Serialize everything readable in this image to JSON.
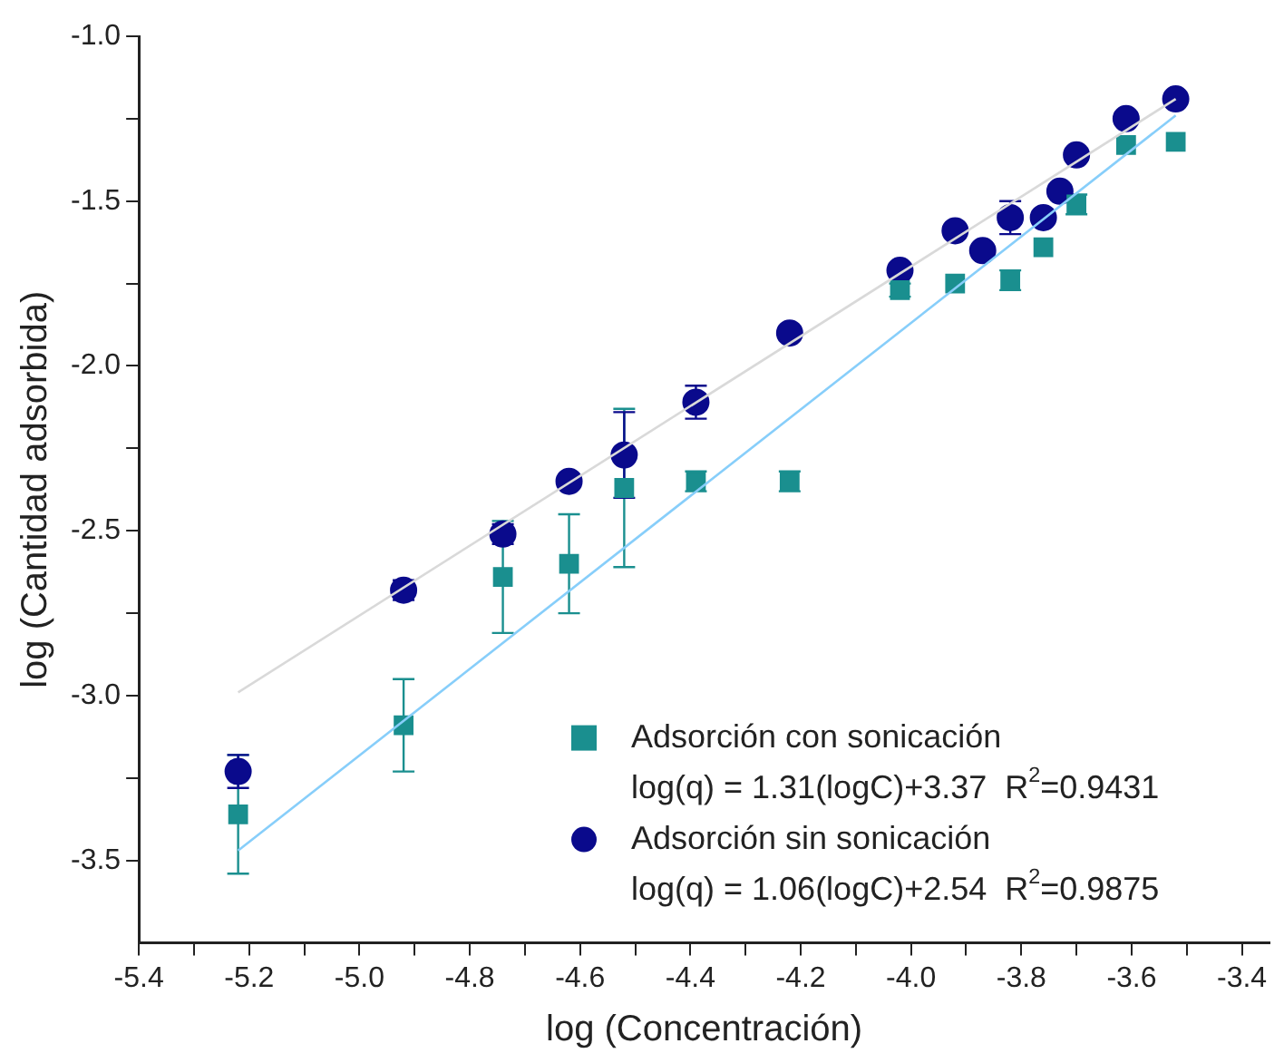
{
  "chart_data": {
    "type": "scatter",
    "xlabel": "log (Concentración)",
    "ylabel": "log (Cantidad adsorbida)",
    "xlim": [
      -5.4,
      -3.35
    ],
    "ylim": [
      -3.75,
      -1.0
    ],
    "xticks": [
      -5.4,
      {
        "value": -5.3,
        "label": null
      },
      -5.2,
      {
        "value": -5.1,
        "label": null
      },
      {
        "value": -5.0,
        "label": "-5.0"
      },
      {
        "value": -4.9,
        "label": null
      },
      -4.8,
      {
        "value": -4.7,
        "label": null
      },
      -4.6,
      {
        "value": -4.5,
        "label": null
      },
      -4.4,
      {
        "value": -4.3,
        "label": null
      },
      -4.2,
      {
        "value": -4.1,
        "label": null
      },
      {
        "value": -4.0,
        "label": "-4.0"
      },
      {
        "value": -3.9,
        "label": null
      },
      -3.8,
      {
        "value": -3.7,
        "label": null
      },
      -3.6,
      {
        "value": -3.5,
        "label": null
      },
      -3.4
    ],
    "yticks": [
      -3.5,
      {
        "value": -3.25,
        "label": null
      },
      {
        "value": -3.0,
        "label": "-3.0"
      },
      {
        "value": -2.75,
        "label": null
      },
      -2.5,
      {
        "value": -2.25,
        "label": null
      },
      {
        "value": -2.0,
        "label": "-2.0"
      },
      {
        "value": -1.75,
        "label": null
      },
      -1.5,
      {
        "value": -1.25,
        "label": null
      },
      {
        "value": -1.0,
        "label": "-1.0"
      }
    ],
    "grid": false,
    "legend": "bottom right",
    "annotations": [
      "log(q) = 1.31(logC)+3.37  R$^{2}$=0.9431",
      "log(q) = 1.06(logC)+2.54  R$^{2}$=0.9875"
    ],
    "series": [
      {
        "name": "Adsorción con sonicación",
        "marker": "square",
        "color": "#1a8f8f",
        "x": [
          -5.22,
          -4.92,
          -4.74,
          -4.62,
          -4.52,
          -4.39,
          -4.22,
          -4.02,
          -3.92,
          -3.82,
          -3.76,
          -3.7,
          -3.61,
          -3.52
        ],
        "values": [
          -3.36,
          -3.09,
          -2.64,
          -2.6,
          -2.37,
          -2.35,
          -2.35,
          -1.77,
          -1.75,
          -1.74,
          -1.64,
          -1.51,
          -1.33,
          -1.32
        ],
        "errors": [
          0.18,
          0.14,
          0.17,
          0.15,
          0.24,
          0.03,
          0.03,
          0.02,
          null,
          0.03,
          null,
          0.03,
          null,
          null
        ]
      },
      {
        "name": "Adsorción sin sonicación",
        "marker": "circle",
        "color": "#0a0a8c",
        "x": [
          -5.22,
          -4.92,
          -4.74,
          -4.62,
          -4.52,
          -4.39,
          -4.22,
          -4.02,
          -3.92,
          -3.87,
          -3.82,
          -3.76,
          -3.73,
          -3.7,
          -3.61,
          -3.52
        ],
        "values": [
          -3.23,
          -2.68,
          -2.51,
          -2.35,
          -2.27,
          -2.11,
          -1.9,
          -1.71,
          -1.59,
          -1.65,
          -1.55,
          -1.55,
          -1.47,
          -1.36,
          -1.25,
          -1.19
        ],
        "errors": [
          0.05,
          0.03,
          0.03,
          null,
          0.13,
          0.05,
          null,
          null,
          null,
          null,
          0.05,
          null,
          null,
          null,
          null,
          null
        ]
      },
      {
        "type": "line",
        "marker": "none",
        "color": "#87cefa",
        "x": [
          -5.22,
          -3.52
        ],
        "values": [
          -3.47,
          -1.24
        ]
      },
      {
        "type": "line",
        "marker": "none",
        "color": "#d9d9d9",
        "x": [
          -5.22,
          -3.52
        ],
        "values": [
          -2.99,
          -1.19
        ]
      }
    ]
  }
}
